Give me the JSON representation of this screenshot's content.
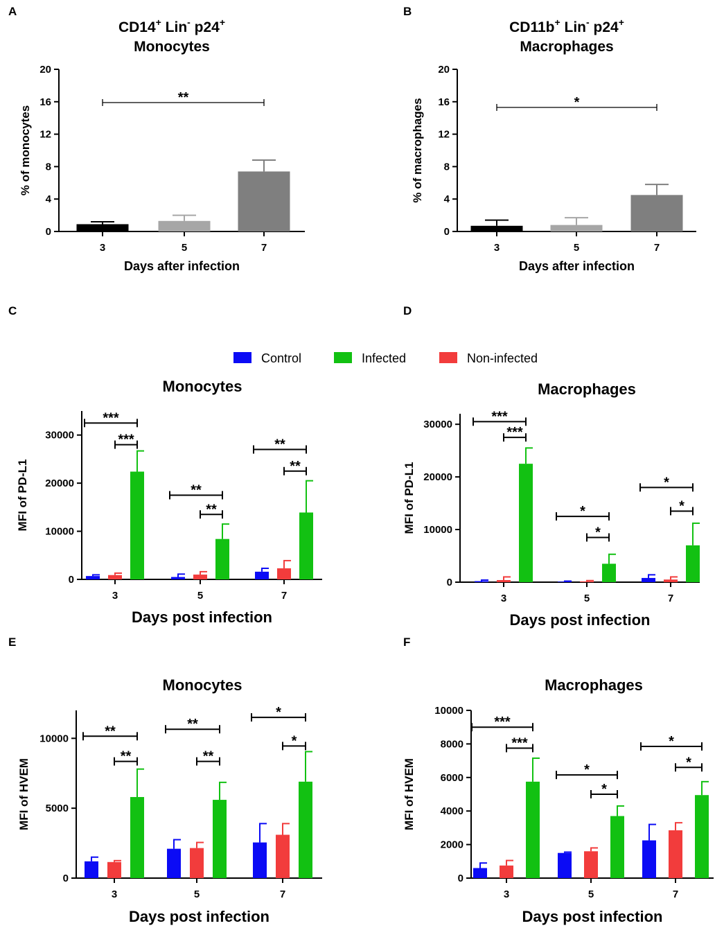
{
  "legend": {
    "entries": [
      {
        "name": "Control",
        "color": "#0b0bf5"
      },
      {
        "name": "Infected",
        "color": "#12c112"
      },
      {
        "name": "Non-infected",
        "color": "#f23c3c"
      }
    ]
  },
  "chart_data": [
    {
      "panel": "A",
      "type": "bar",
      "title_parts": [
        "CD14",
        "+",
        " Lin",
        "-",
        " p24",
        "+"
      ],
      "title_line2": "Monocytes",
      "xlabel": "Days after infection",
      "ylabel": "% of monocytes",
      "categories": [
        "3",
        "5",
        "7"
      ],
      "ylim": [
        0,
        20
      ],
      "yticks": [
        0,
        4,
        8,
        12,
        16,
        20
      ],
      "ytick_labels": [
        "0",
        "4",
        "8",
        "12",
        "16",
        "20"
      ],
      "series": [
        {
          "name": "% of monocytes",
          "values": [
            0.9,
            1.3,
            7.4
          ],
          "errors": [
            0.3,
            0.7,
            1.4
          ],
          "colors": [
            "#000000",
            "#a6a6a6",
            "#7f7f7f"
          ]
        }
      ],
      "significance": [
        {
          "from": "3",
          "to": "7",
          "label": "**",
          "y": 15.9,
          "style": "span"
        }
      ]
    },
    {
      "panel": "B",
      "type": "bar",
      "title_parts": [
        "CD11b",
        "+",
        " Lin",
        "-",
        " p24",
        "+"
      ],
      "title_line2": "Macrophages",
      "xlabel": "Days after infection",
      "ylabel": "% of macrophages",
      "categories": [
        "3",
        "5",
        "7"
      ],
      "ylim": [
        0,
        20
      ],
      "yticks": [
        0,
        4,
        8,
        12,
        16,
        20
      ],
      "ytick_labels": [
        "0",
        "4",
        "8",
        "12",
        "16",
        "20"
      ],
      "series": [
        {
          "name": "% of macrophages",
          "values": [
            0.7,
            0.8,
            4.5
          ],
          "errors": [
            0.7,
            0.9,
            1.3
          ],
          "colors": [
            "#000000",
            "#a6a6a6",
            "#7f7f7f"
          ]
        }
      ],
      "significance": [
        {
          "from": "3",
          "to": "7",
          "label": "*",
          "y": 15.3,
          "style": "span"
        }
      ]
    },
    {
      "panel": "C",
      "type": "bar",
      "title": "Monocytes",
      "xlabel": "Days post infection",
      "ylabel": "MFI of PD-L1",
      "categories": [
        "3",
        "5",
        "7"
      ],
      "ylim": [
        0,
        35000
      ],
      "yticks": [
        0,
        10000,
        20000,
        30000
      ],
      "ytick_labels": [
        "0",
        "10000",
        "20000",
        "30000"
      ],
      "series": [
        {
          "name": "Control",
          "values": [
            700,
            500,
            1600
          ],
          "errors": [
            250,
            600,
            700
          ]
        },
        {
          "name": "Non-infected",
          "values": [
            900,
            1000,
            2300
          ],
          "errors": [
            400,
            600,
            1600
          ]
        },
        {
          "name": "Infected",
          "values": [
            22400,
            8400,
            13900
          ],
          "errors": [
            4300,
            3100,
            6600
          ]
        }
      ],
      "significance": [
        {
          "category": "3",
          "label": "***",
          "y": 32500,
          "pair": "control-infected"
        },
        {
          "category": "3",
          "label": "***",
          "y": 28000,
          "pair": "noninfected-infected"
        },
        {
          "category": "5",
          "label": "**",
          "y": 17500,
          "pair": "control-infected"
        },
        {
          "category": "5",
          "label": "**",
          "y": 13500,
          "pair": "noninfected-infected"
        },
        {
          "category": "7",
          "label": "**",
          "y": 27000,
          "pair": "control-infected"
        },
        {
          "category": "7",
          "label": "**",
          "y": 22500,
          "pair": "noninfected-infected"
        }
      ]
    },
    {
      "panel": "D",
      "type": "bar",
      "title": "Macrophages",
      "xlabel": "Days post infection",
      "ylabel": "MFI of PD-L1",
      "categories": [
        "3",
        "5",
        "7"
      ],
      "ylim": [
        0,
        32000
      ],
      "yticks": [
        0,
        10000,
        20000,
        30000
      ],
      "ytick_labels": [
        "0",
        "10000",
        "20000",
        "30000"
      ],
      "series": [
        {
          "name": "Control",
          "values": [
            200,
            100,
            800
          ],
          "errors": [
            200,
            100,
            600
          ]
        },
        {
          "name": "Non-infected",
          "values": [
            400,
            150,
            500
          ],
          "errors": [
            600,
            150,
            500
          ]
        },
        {
          "name": "Infected",
          "values": [
            22500,
            3500,
            7000
          ],
          "errors": [
            3000,
            1800,
            4200
          ]
        }
      ],
      "significance": [
        {
          "category": "3",
          "label": "***",
          "y": 30500,
          "pair": "control-infected"
        },
        {
          "category": "3",
          "label": "***",
          "y": 27500,
          "pair": "noninfected-infected"
        },
        {
          "category": "5",
          "label": "*",
          "y": 12500,
          "pair": "control-infected"
        },
        {
          "category": "5",
          "label": "*",
          "y": 8500,
          "pair": "noninfected-infected"
        },
        {
          "category": "7",
          "label": "*",
          "y": 18000,
          "pair": "control-infected"
        },
        {
          "category": "7",
          "label": "*",
          "y": 13500,
          "pair": "noninfected-infected"
        }
      ]
    },
    {
      "panel": "E",
      "type": "bar",
      "title": "Monocytes",
      "xlabel": "Days post infection",
      "ylabel": "MFI of HVEM",
      "categories": [
        "3",
        "5",
        "7"
      ],
      "ylim": [
        0,
        12000
      ],
      "yticks": [
        0,
        5000,
        10000
      ],
      "ytick_labels": [
        "0",
        "5000",
        "10000"
      ],
      "series": [
        {
          "name": "Control",
          "values": [
            1200,
            2100,
            2550
          ],
          "errors": [
            300,
            650,
            1350
          ]
        },
        {
          "name": "Non-infected",
          "values": [
            1150,
            2150,
            3100
          ],
          "errors": [
            100,
            400,
            800
          ]
        },
        {
          "name": "Infected",
          "values": [
            5800,
            5600,
            6900
          ],
          "errors": [
            2000,
            1250,
            2150
          ]
        }
      ],
      "significance": [
        {
          "category": "3",
          "label": "**",
          "y": 10150,
          "pair": "control-infected"
        },
        {
          "category": "3",
          "label": "**",
          "y": 8350,
          "pair": "noninfected-infected"
        },
        {
          "category": "5",
          "label": "**",
          "y": 10650,
          "pair": "control-infected"
        },
        {
          "category": "5",
          "label": "**",
          "y": 8350,
          "pair": "noninfected-infected"
        },
        {
          "category": "7",
          "label": "*",
          "y": 11500,
          "pair": "control-infected"
        },
        {
          "category": "7",
          "label": "*",
          "y": 9450,
          "pair": "noninfected-infected"
        }
      ]
    },
    {
      "panel": "F",
      "type": "bar",
      "title": "Macrophages",
      "xlabel": "Days post infection",
      "ylabel": "MFI of HVEM",
      "categories": [
        "3",
        "5",
        "7"
      ],
      "ylim": [
        0,
        10000
      ],
      "yticks": [
        0,
        2000,
        4000,
        6000,
        8000,
        10000
      ],
      "ytick_labels": [
        "0",
        "2000",
        "4000",
        "6000",
        "8000",
        "10000"
      ],
      "series": [
        {
          "name": "Control",
          "values": [
            600,
            1500,
            2250
          ],
          "errors": [
            300,
            50,
            950
          ]
        },
        {
          "name": "Non-infected",
          "values": [
            750,
            1600,
            2850
          ],
          "errors": [
            300,
            200,
            450
          ]
        },
        {
          "name": "Infected",
          "values": [
            5750,
            3700,
            4950
          ],
          "errors": [
            1400,
            600,
            800
          ]
        }
      ],
      "significance": [
        {
          "category": "3",
          "label": "***",
          "y": 9000,
          "pair": "control-infected"
        },
        {
          "category": "3",
          "label": "***",
          "y": 7750,
          "pair": "noninfected-infected"
        },
        {
          "category": "5",
          "label": "*",
          "y": 6150,
          "pair": "control-infected"
        },
        {
          "category": "5",
          "label": "*",
          "y": 5000,
          "pair": "noninfected-infected"
        },
        {
          "category": "7",
          "label": "*",
          "y": 7850,
          "pair": "control-infected"
        },
        {
          "category": "7",
          "label": "*",
          "y": 6600,
          "pair": "noninfected-infected"
        }
      ]
    }
  ]
}
